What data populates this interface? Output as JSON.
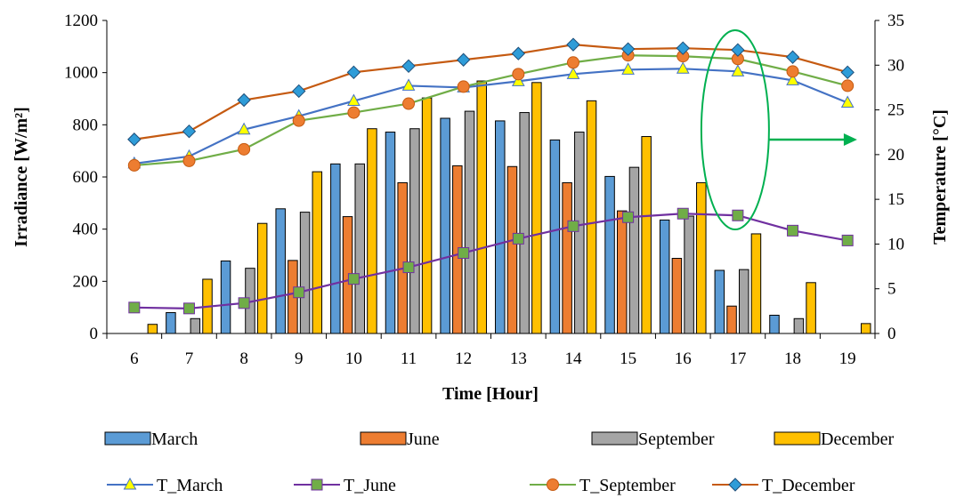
{
  "chart_data": {
    "type": "bar",
    "x": [
      6,
      7,
      8,
      9,
      10,
      11,
      12,
      13,
      14,
      15,
      16,
      17,
      18,
      19
    ],
    "xlabel": "Time [Hour]",
    "ylabel": "Irradiance [W/m²]",
    "ylim": [
      0,
      1200
    ],
    "y_ticks": [
      0,
      200,
      400,
      600,
      800,
      1000,
      1200
    ],
    "y2label": "Temperature [°C]",
    "y2lim": [
      0,
      35
    ],
    "y2_ticks": [
      0,
      5,
      10,
      15,
      20,
      25,
      30,
      35
    ],
    "grid": false,
    "legend_position": "bottom",
    "bar_series": [
      {
        "name": "March",
        "color": "#5B9BD5",
        "values": [
          0,
          80,
          278,
          478,
          650,
          772,
          825,
          815,
          742,
          602,
          435,
          242,
          70,
          0
        ]
      },
      {
        "name": "June",
        "color": "#ED7D31",
        "values": [
          0,
          0,
          0,
          280,
          448,
          578,
          643,
          640,
          578,
          470,
          288,
          105,
          0,
          0
        ]
      },
      {
        "name": "September",
        "color": "#A5A5A5",
        "values": [
          0,
          57,
          250,
          465,
          650,
          785,
          852,
          847,
          772,
          637,
          450,
          245,
          57,
          0
        ]
      },
      {
        "name": "December",
        "color": "#FFC000",
        "values": [
          35,
          208,
          422,
          620,
          785,
          903,
          968,
          962,
          892,
          755,
          578,
          382,
          195,
          38
        ]
      }
    ],
    "line_series": [
      {
        "name": "T_March",
        "color": "#4472C4",
        "marker": "triangle",
        "marker_fill": "#FFFF00",
        "values": [
          19.0,
          19.8,
          22.8,
          24.3,
          26.0,
          27.7,
          27.5,
          28.2,
          29.0,
          29.5,
          29.6,
          29.3,
          28.3,
          25.8
        ]
      },
      {
        "name": "T_June",
        "color": "#7030A0",
        "marker": "square",
        "marker_fill": "#70AD47",
        "values": [
          2.9,
          2.8,
          3.4,
          4.6,
          6.1,
          7.4,
          9.0,
          10.6,
          12.0,
          13.0,
          13.4,
          13.2,
          11.5,
          10.4
        ]
      },
      {
        "name": "T_September",
        "color": "#70AD47",
        "marker": "circle",
        "marker_fill": "#ED7D31",
        "values": [
          18.8,
          19.3,
          20.6,
          23.8,
          24.7,
          25.7,
          27.6,
          29.0,
          30.3,
          31.1,
          31.0,
          30.7,
          29.3,
          27.7
        ]
      },
      {
        "name": "T_December",
        "color": "#C55A11",
        "marker": "diamond",
        "marker_fill": "#2E9CD8",
        "values": [
          21.7,
          22.6,
          26.1,
          27.1,
          29.2,
          29.9,
          30.6,
          31.3,
          32.3,
          31.8,
          31.9,
          31.7,
          30.9,
          29.2
        ]
      }
    ],
    "annotation": {
      "type": "ellipse-with-arrow",
      "target_x": 17,
      "color": "#00B050",
      "points_to": "right-axis"
    }
  }
}
